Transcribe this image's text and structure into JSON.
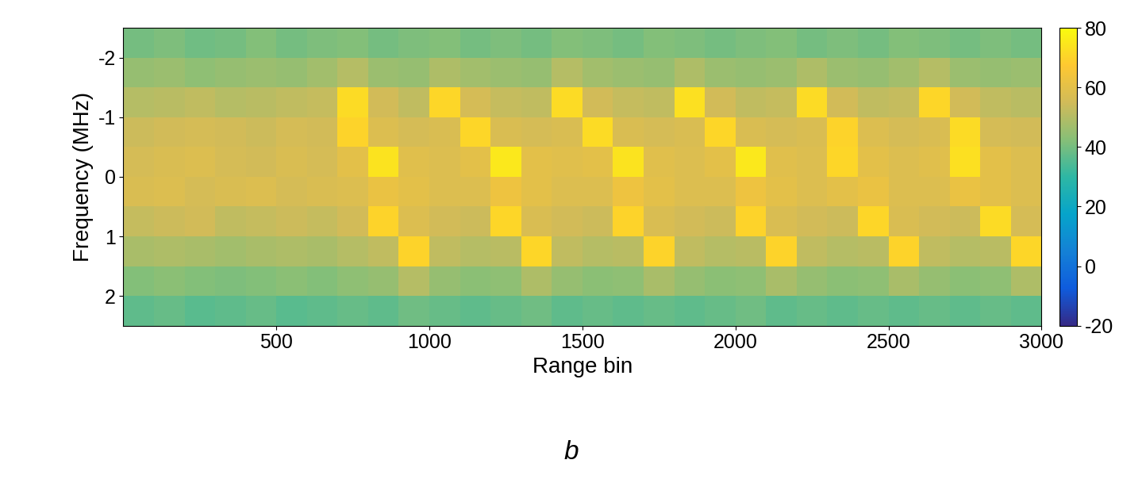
{
  "chart_data": {
    "type": "heatmap",
    "x_label": "Range bin",
    "y_label": "Frequency (MHz)",
    "caption": "b",
    "xlim": [
      0,
      3000
    ],
    "xticks": [
      500,
      1000,
      1500,
      2000,
      2500,
      3000
    ],
    "ylim": [
      2.5,
      -2.5
    ],
    "yticks": [
      -2,
      -1,
      0,
      1,
      2
    ],
    "x_edges": [
      0,
      100,
      200,
      300,
      400,
      500,
      600,
      700,
      800,
      900,
      1000,
      1100,
      1200,
      1300,
      1400,
      1500,
      1600,
      1700,
      1800,
      1900,
      2000,
      2100,
      2200,
      2300,
      2400,
      2500,
      2600,
      2700,
      2800,
      2900,
      3000
    ],
    "y_edges": [
      -2.5,
      -2.0,
      -1.5,
      -1.0,
      -0.5,
      0.0,
      0.5,
      1.0,
      1.5,
      2.0,
      2.5
    ],
    "cells": [
      [
        40,
        41,
        39,
        40,
        42,
        40,
        41,
        42,
        40,
        41,
        42,
        40,
        41,
        40,
        42,
        41,
        40,
        42,
        41,
        40,
        41,
        42,
        40,
        41,
        40,
        42,
        41,
        40,
        41,
        40
      ],
      [
        45,
        46,
        44,
        45,
        46,
        45,
        47,
        50,
        46,
        45,
        49,
        47,
        46,
        45,
        50,
        47,
        46,
        45,
        49,
        46,
        45,
        46,
        49,
        46,
        45,
        47,
        50,
        46,
        45,
        46
      ],
      [
        50,
        51,
        52,
        50,
        51,
        52,
        53,
        72,
        55,
        52,
        71,
        56,
        53,
        52,
        72,
        55,
        53,
        52,
        73,
        55,
        52,
        53,
        72,
        55,
        52,
        53,
        71,
        55,
        52,
        51
      ],
      [
        54,
        55,
        56,
        55,
        54,
        56,
        55,
        70,
        58,
        56,
        57,
        71,
        57,
        56,
        57,
        72,
        57,
        56,
        57,
        71,
        57,
        56,
        57,
        70,
        58,
        56,
        57,
        72,
        56,
        55
      ],
      [
        56,
        57,
        58,
        56,
        55,
        57,
        56,
        60,
        74,
        59,
        58,
        60,
        75,
        60,
        59,
        60,
        74,
        59,
        58,
        60,
        75,
        59,
        58,
        71,
        60,
        58,
        59,
        73,
        60,
        58
      ],
      [
        57,
        58,
        56,
        57,
        58,
        56,
        57,
        58,
        62,
        60,
        58,
        58,
        63,
        60,
        58,
        58,
        63,
        60,
        58,
        58,
        63,
        60,
        58,
        60,
        62,
        58,
        58,
        62,
        60,
        58
      ],
      [
        53,
        54,
        55,
        52,
        53,
        54,
        53,
        55,
        70,
        58,
        55,
        54,
        71,
        57,
        55,
        54,
        70,
        57,
        55,
        54,
        70,
        57,
        55,
        54,
        71,
        57,
        55,
        54,
        72,
        56
      ],
      [
        48,
        49,
        48,
        47,
        48,
        49,
        48,
        50,
        52,
        70,
        52,
        50,
        51,
        71,
        52,
        50,
        51,
        70,
        52,
        50,
        51,
        70,
        52,
        50,
        51,
        70,
        52,
        50,
        51,
        71
      ],
      [
        42,
        43,
        42,
        41,
        42,
        43,
        42,
        44,
        45,
        50,
        45,
        43,
        44,
        49,
        45,
        43,
        44,
        48,
        45,
        43,
        44,
        48,
        45,
        43,
        44,
        48,
        45,
        43,
        44,
        49
      ],
      [
        37,
        38,
        36,
        37,
        38,
        36,
        37,
        38,
        37,
        39,
        38,
        37,
        38,
        39,
        37,
        38,
        37,
        38,
        37,
        38,
        39,
        37,
        38,
        37,
        38,
        37,
        38,
        37,
        38,
        37
      ]
    ],
    "colorbar_range": [
      -20,
      80
    ],
    "colorbar_ticks": [
      -20,
      0,
      20,
      40,
      60,
      80
    ]
  }
}
